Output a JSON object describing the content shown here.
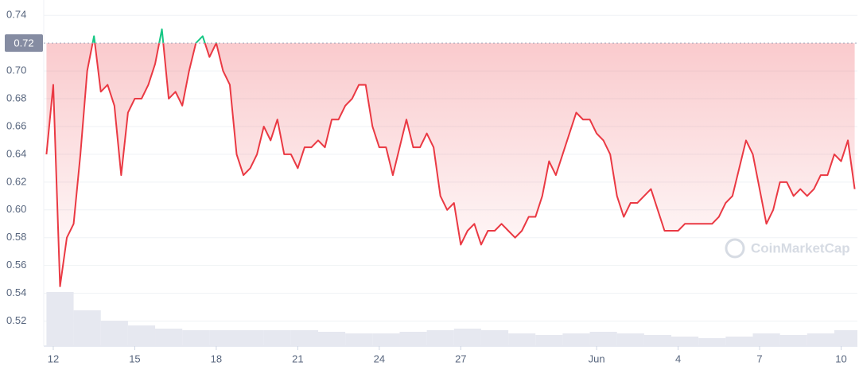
{
  "chart_data": {
    "type": "line",
    "baseline": {
      "value": 0.72,
      "label": "0.72"
    },
    "watermark": "CoinMarketCap",
    "xlim": [
      -0.35,
      29.6
    ],
    "xticks": [
      {
        "value": 0,
        "label": "12"
      },
      {
        "value": 3,
        "label": "15"
      },
      {
        "value": 6,
        "label": "18"
      },
      {
        "value": 9,
        "label": "21"
      },
      {
        "value": 12,
        "label": "24"
      },
      {
        "value": 15,
        "label": "27"
      },
      {
        "value": 20,
        "label": "Jun"
      },
      {
        "value": 23,
        "label": "4"
      },
      {
        "value": 26,
        "label": "7"
      },
      {
        "value": 29,
        "label": "10"
      }
    ],
    "ylim": [
      0.502,
      0.751
    ],
    "yticks": [
      0.52,
      0.54,
      0.56,
      0.58,
      {
        "value": 0.6,
        "label": "0.60"
      },
      0.62,
      0.64,
      0.66,
      0.68,
      {
        "value": 0.7,
        "label": "0.70"
      },
      0.74
    ],
    "grid": true,
    "up_color": "#16c784",
    "down_color": "#ea3943",
    "x": [
      -0.25,
      0,
      0.25,
      0.5,
      0.75,
      1,
      1.25,
      1.5,
      1.75,
      2,
      2.25,
      2.5,
      2.75,
      3,
      3.25,
      3.5,
      3.75,
      4,
      4.25,
      4.5,
      4.75,
      5,
      5.25,
      5.5,
      5.75,
      6,
      6.25,
      6.5,
      6.75,
      7,
      7.25,
      7.5,
      7.75,
      8,
      8.25,
      8.5,
      8.75,
      9,
      9.25,
      9.5,
      9.75,
      10,
      10.25,
      10.5,
      10.75,
      11,
      11.25,
      11.5,
      11.75,
      12,
      12.25,
      12.5,
      12.75,
      13,
      13.25,
      13.5,
      13.75,
      14,
      14.25,
      14.5,
      14.75,
      15,
      15.25,
      15.5,
      15.75,
      16,
      16.25,
      16.5,
      16.75,
      17,
      17.25,
      17.5,
      17.75,
      18,
      18.25,
      18.5,
      18.75,
      19,
      19.25,
      19.5,
      19.75,
      20,
      20.25,
      20.5,
      20.75,
      21,
      21.25,
      21.5,
      21.75,
      22,
      22.25,
      22.5,
      22.75,
      23,
      23.25,
      23.5,
      23.75,
      24,
      24.25,
      24.5,
      24.75,
      25,
      25.25,
      25.5,
      25.75,
      26,
      26.25,
      26.5,
      26.75,
      27,
      27.25,
      27.5,
      27.75,
      28,
      28.25,
      28.5,
      28.75,
      29,
      29.25,
      29.5
    ],
    "series": [
      {
        "values": [
          0.64,
          0.69,
          0.545,
          0.58,
          0.59,
          0.64,
          0.7,
          0.725,
          0.685,
          0.69,
          0.675,
          0.625,
          0.67,
          0.68,
          0.68,
          0.69,
          0.705,
          0.73,
          0.68,
          0.685,
          0.675,
          0.7,
          0.72,
          0.725,
          0.71,
          0.72,
          0.7,
          0.69,
          0.64,
          0.625,
          0.63,
          0.64,
          0.66,
          0.65,
          0.665,
          0.64,
          0.64,
          0.63,
          0.645,
          0.645,
          0.65,
          0.645,
          0.665,
          0.665,
          0.675,
          0.68,
          0.69,
          0.69,
          0.66,
          0.645,
          0.645,
          0.625,
          0.645,
          0.665,
          0.645,
          0.645,
          0.655,
          0.645,
          0.61,
          0.6,
          0.605,
          0.575,
          0.585,
          0.59,
          0.575,
          0.585,
          0.585,
          0.59,
          0.585,
          0.58,
          0.585,
          0.595,
          0.595,
          0.61,
          0.635,
          0.625,
          0.64,
          0.655,
          0.67,
          0.665,
          0.665,
          0.655,
          0.65,
          0.64,
          0.61,
          0.595,
          0.605,
          0.605,
          0.61,
          0.615,
          0.6,
          0.585,
          0.585,
          0.585,
          0.59,
          0.59,
          0.59,
          0.59,
          0.59,
          0.595,
          0.605,
          0.61,
          0.63,
          0.65,
          0.64,
          0.615,
          0.59,
          0.6,
          0.62,
          0.62,
          0.61,
          0.615,
          0.61,
          0.615,
          0.625,
          0.625,
          0.64,
          0.635,
          0.65,
          0.615
        ]
      }
    ],
    "volume": {
      "color": "#e6e8f0",
      "ylim": [
        0,
        100
      ],
      "x": [
        -0.25,
        0.75,
        1.75,
        2.75,
        3.75,
        4.75,
        5.75,
        6.75,
        7.75,
        8.75,
        9.75,
        10.75,
        11.75,
        12.75,
        13.75,
        14.75,
        15.75,
        16.75,
        17.75,
        18.75,
        19.75,
        20.75,
        21.75,
        22.75,
        23.75,
        24.75,
        25.75,
        26.75,
        27.75,
        28.75
      ],
      "values": [
        68,
        45,
        32,
        26,
        22,
        20,
        20,
        20,
        20,
        20,
        18,
        16,
        16,
        18,
        20,
        22,
        20,
        16,
        14,
        16,
        18,
        16,
        14,
        12,
        10,
        12,
        16,
        14,
        16,
        20
      ]
    }
  }
}
